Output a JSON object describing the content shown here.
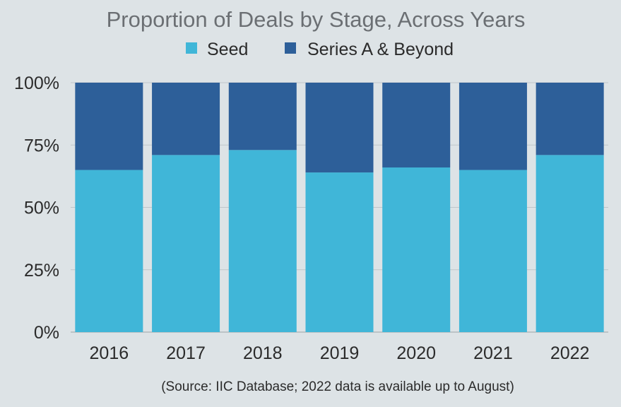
{
  "chart_data": {
    "type": "bar",
    "stacked": true,
    "title": "Proportion of Deals by Stage, Across Years",
    "categories": [
      "2016",
      "2017",
      "2018",
      "2019",
      "2020",
      "2021",
      "2022"
    ],
    "series": [
      {
        "name": "Seed",
        "color": "#40b6d8",
        "values": [
          65,
          71,
          73,
          64,
          66,
          65,
          71
        ]
      },
      {
        "name": "Series A & Beyond",
        "color": "#2d5f99",
        "values": [
          35,
          29,
          27,
          36,
          34,
          35,
          29
        ]
      }
    ],
    "yticks": [
      "0%",
      "25%",
      "50%",
      "75%",
      "100%"
    ],
    "ylim": [
      0,
      100
    ],
    "grid": true,
    "legend_position": "top",
    "source_note": "(Source: IIC Database; 2022 data is available up to August)"
  }
}
